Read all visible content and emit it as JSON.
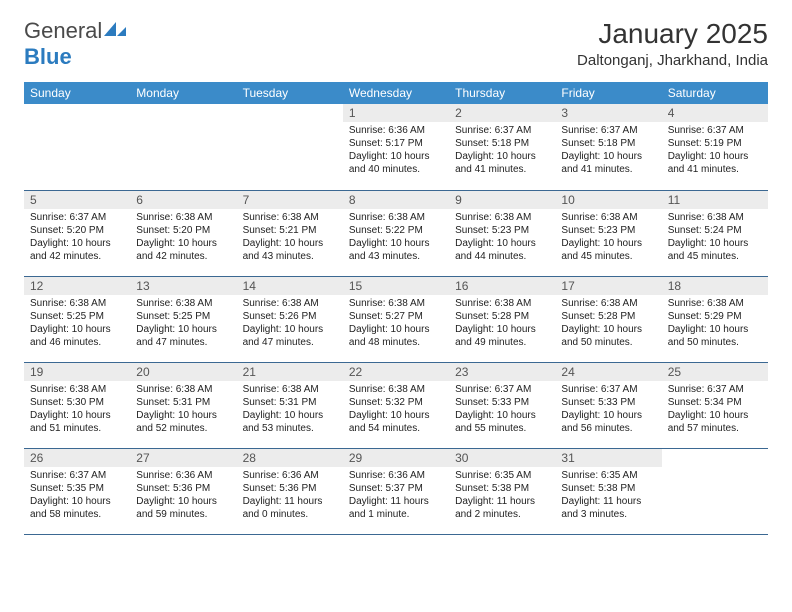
{
  "logo": {
    "general": "General",
    "blue": "Blue"
  },
  "title": "January 2025",
  "location": "Daltonganj, Jharkhand, India",
  "style": {
    "header_bg": "#3b8bc9",
    "header_text": "#ffffff",
    "daynum_bg": "#ececec",
    "daynum_text": "#555555",
    "border_color": "#3b6892",
    "body_text": "#222222",
    "title_fontsize": 28,
    "location_fontsize": 15,
    "dayheader_fontsize": 12,
    "daytext_fontsize": 10
  },
  "day_headers": [
    "Sunday",
    "Monday",
    "Tuesday",
    "Wednesday",
    "Thursday",
    "Friday",
    "Saturday"
  ],
  "weeks": [
    [
      null,
      null,
      null,
      {
        "n": "1",
        "sr": "6:36 AM",
        "ss": "5:17 PM",
        "dl": "10 hours and 40 minutes."
      },
      {
        "n": "2",
        "sr": "6:37 AM",
        "ss": "5:18 PM",
        "dl": "10 hours and 41 minutes."
      },
      {
        "n": "3",
        "sr": "6:37 AM",
        "ss": "5:18 PM",
        "dl": "10 hours and 41 minutes."
      },
      {
        "n": "4",
        "sr": "6:37 AM",
        "ss": "5:19 PM",
        "dl": "10 hours and 41 minutes."
      }
    ],
    [
      {
        "n": "5",
        "sr": "6:37 AM",
        "ss": "5:20 PM",
        "dl": "10 hours and 42 minutes."
      },
      {
        "n": "6",
        "sr": "6:38 AM",
        "ss": "5:20 PM",
        "dl": "10 hours and 42 minutes."
      },
      {
        "n": "7",
        "sr": "6:38 AM",
        "ss": "5:21 PM",
        "dl": "10 hours and 43 minutes."
      },
      {
        "n": "8",
        "sr": "6:38 AM",
        "ss": "5:22 PM",
        "dl": "10 hours and 43 minutes."
      },
      {
        "n": "9",
        "sr": "6:38 AM",
        "ss": "5:23 PM",
        "dl": "10 hours and 44 minutes."
      },
      {
        "n": "10",
        "sr": "6:38 AM",
        "ss": "5:23 PM",
        "dl": "10 hours and 45 minutes."
      },
      {
        "n": "11",
        "sr": "6:38 AM",
        "ss": "5:24 PM",
        "dl": "10 hours and 45 minutes."
      }
    ],
    [
      {
        "n": "12",
        "sr": "6:38 AM",
        "ss": "5:25 PM",
        "dl": "10 hours and 46 minutes."
      },
      {
        "n": "13",
        "sr": "6:38 AM",
        "ss": "5:25 PM",
        "dl": "10 hours and 47 minutes."
      },
      {
        "n": "14",
        "sr": "6:38 AM",
        "ss": "5:26 PM",
        "dl": "10 hours and 47 minutes."
      },
      {
        "n": "15",
        "sr": "6:38 AM",
        "ss": "5:27 PM",
        "dl": "10 hours and 48 minutes."
      },
      {
        "n": "16",
        "sr": "6:38 AM",
        "ss": "5:28 PM",
        "dl": "10 hours and 49 minutes."
      },
      {
        "n": "17",
        "sr": "6:38 AM",
        "ss": "5:28 PM",
        "dl": "10 hours and 50 minutes."
      },
      {
        "n": "18",
        "sr": "6:38 AM",
        "ss": "5:29 PM",
        "dl": "10 hours and 50 minutes."
      }
    ],
    [
      {
        "n": "19",
        "sr": "6:38 AM",
        "ss": "5:30 PM",
        "dl": "10 hours and 51 minutes."
      },
      {
        "n": "20",
        "sr": "6:38 AM",
        "ss": "5:31 PM",
        "dl": "10 hours and 52 minutes."
      },
      {
        "n": "21",
        "sr": "6:38 AM",
        "ss": "5:31 PM",
        "dl": "10 hours and 53 minutes."
      },
      {
        "n": "22",
        "sr": "6:38 AM",
        "ss": "5:32 PM",
        "dl": "10 hours and 54 minutes."
      },
      {
        "n": "23",
        "sr": "6:37 AM",
        "ss": "5:33 PM",
        "dl": "10 hours and 55 minutes."
      },
      {
        "n": "24",
        "sr": "6:37 AM",
        "ss": "5:33 PM",
        "dl": "10 hours and 56 minutes."
      },
      {
        "n": "25",
        "sr": "6:37 AM",
        "ss": "5:34 PM",
        "dl": "10 hours and 57 minutes."
      }
    ],
    [
      {
        "n": "26",
        "sr": "6:37 AM",
        "ss": "5:35 PM",
        "dl": "10 hours and 58 minutes."
      },
      {
        "n": "27",
        "sr": "6:36 AM",
        "ss": "5:36 PM",
        "dl": "10 hours and 59 minutes."
      },
      {
        "n": "28",
        "sr": "6:36 AM",
        "ss": "5:36 PM",
        "dl": "11 hours and 0 minutes."
      },
      {
        "n": "29",
        "sr": "6:36 AM",
        "ss": "5:37 PM",
        "dl": "11 hours and 1 minute."
      },
      {
        "n": "30",
        "sr": "6:35 AM",
        "ss": "5:38 PM",
        "dl": "11 hours and 2 minutes."
      },
      {
        "n": "31",
        "sr": "6:35 AM",
        "ss": "5:38 PM",
        "dl": "11 hours and 3 minutes."
      },
      null
    ]
  ],
  "labels": {
    "sunrise": "Sunrise:",
    "sunset": "Sunset:",
    "daylight": "Daylight:"
  }
}
